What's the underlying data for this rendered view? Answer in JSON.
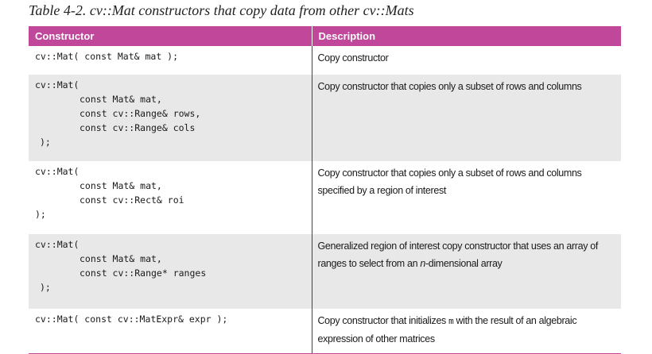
{
  "caption": "Table 4-2. cv::Mat constructors that copy data from other cv::Mats",
  "table": {
    "headers": [
      "Constructor",
      "Description"
    ],
    "rows": [
      {
        "code_first": "cv::Mat( const Mat& mat );",
        "code_params": [],
        "code_close": "",
        "description": "Copy constructor"
      },
      {
        "code_first": "cv::Mat(",
        "code_params": [
          "const Mat& mat,",
          "const cv::Range& rows,",
          "const cv::Range& cols"
        ],
        "code_close": ");",
        "description": "Copy constructor that copies only a subset of rows and columns"
      },
      {
        "code_first": "cv::Mat(",
        "code_params": [
          "const Mat& mat,",
          "const cv::Rect& roi"
        ],
        "code_close": ");",
        "description": "Copy constructor that copies only a subset of rows and columns specified by a region of interest"
      },
      {
        "code_first": "cv::Mat(",
        "code_params": [
          "const Mat& mat,",
          "const cv::Range* ranges"
        ],
        "code_close": ");",
        "description_parts": [
          "Generalized region of interest copy constructor that uses an array of ranges to select from an ",
          "n",
          "-dimensional array"
        ]
      },
      {
        "code_first": "cv::Mat( const cv::MatExpr& expr );",
        "code_params": [],
        "code_close": "",
        "description_parts": [
          "Copy constructor that initializes ",
          "m",
          " with the result of an algebraic expression of other matrices"
        ]
      }
    ]
  },
  "colors": {
    "header_bg": "#c0479a",
    "header_text": "#ffffff",
    "shaded_row": "#e8e8e8"
  }
}
